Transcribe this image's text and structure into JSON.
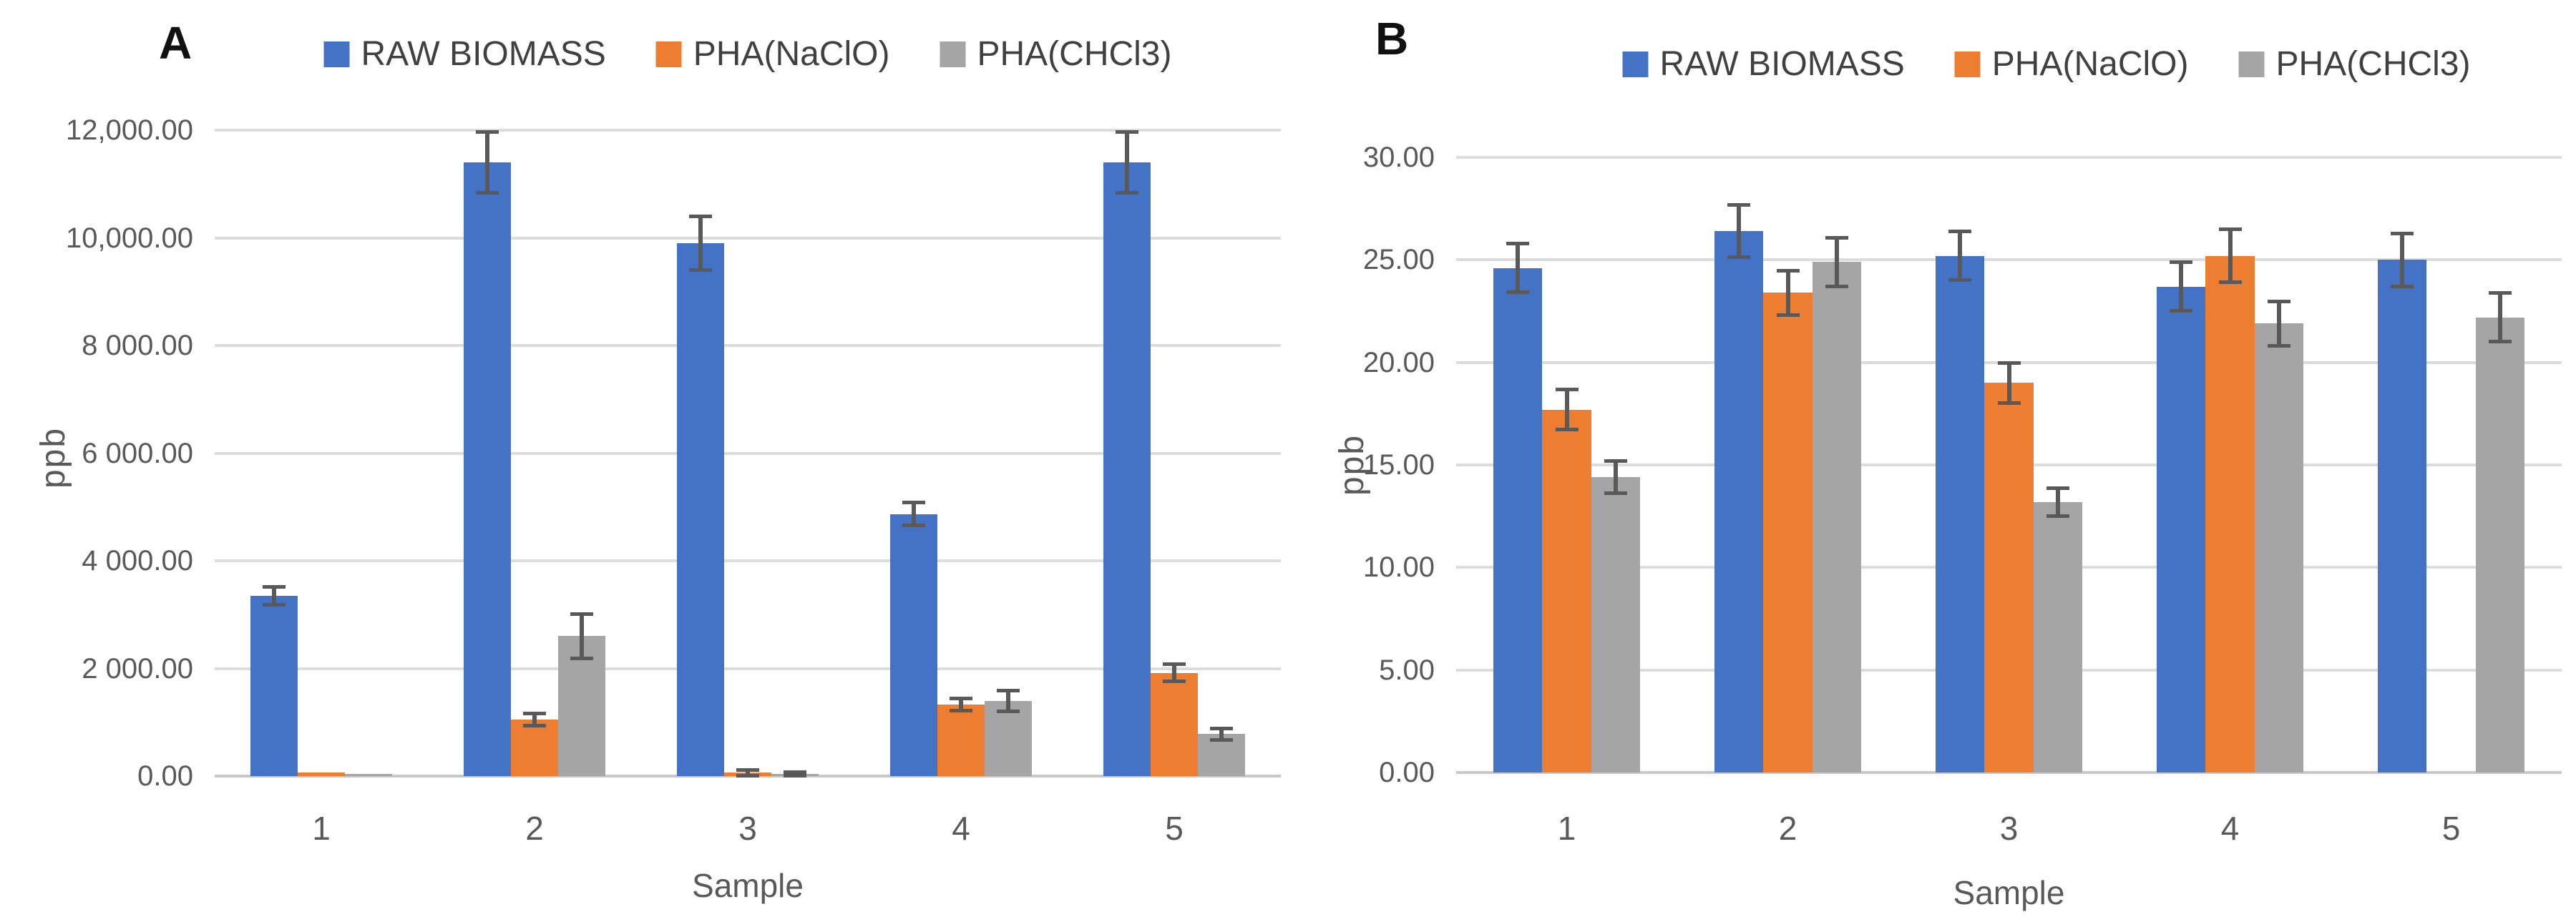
{
  "figure": {
    "background": "#ffffff",
    "colors": {
      "grid": "#dcdcdc",
      "baseline": "#c8c8c8",
      "axis_text": "#595959",
      "error_bar": "#595959",
      "legend_text": "#404040",
      "panel_label": "#111111"
    }
  },
  "chart_data": [
    {
      "type": "bar",
      "panel_label": "A",
      "title": "",
      "xlabel": "Sample",
      "ylabel": "ppb",
      "categories": [
        "1",
        "2",
        "3",
        "4",
        "5"
      ],
      "series": [
        {
          "name": "RAW BIOMASS",
          "color": "#4472C4",
          "values": [
            3350,
            11400,
            9900,
            4870,
            11400
          ],
          "errors": [
            170,
            570,
            500,
            220,
            570
          ]
        },
        {
          "name": "PHA(NaClO)",
          "color": "#ED7D31",
          "values": [
            60,
            1050,
            60,
            1330,
            1920
          ],
          "errors": [
            0,
            120,
            60,
            120,
            160
          ]
        },
        {
          "name": "PHA(CHCl3)",
          "color": "#A5A5A5",
          "values": [
            40,
            2600,
            40,
            1390,
            780
          ],
          "errors": [
            0,
            420,
            40,
            200,
            110
          ]
        }
      ],
      "ylim": [
        0,
        12000
      ],
      "ytick_step": 2000,
      "ytick_labels": [
        "0.00",
        "2 000.00",
        "4 000.00",
        "6 000.00",
        "8 000.00",
        "10,000.00",
        "12,000.00"
      ],
      "grid": true,
      "legend_position": "top"
    },
    {
      "type": "bar",
      "panel_label": "B",
      "title": "",
      "xlabel": "Sample",
      "ylabel": "ppb",
      "categories": [
        "1",
        "2",
        "3",
        "4",
        "5"
      ],
      "series": [
        {
          "name": "RAW BIOMASS",
          "color": "#4472C4",
          "values": [
            24.6,
            26.4,
            25.2,
            23.7,
            25.0
          ],
          "errors": [
            1.2,
            1.3,
            1.2,
            1.2,
            1.3
          ]
        },
        {
          "name": "PHA(NaClO)",
          "color": "#ED7D31",
          "values": [
            17.7,
            23.4,
            19.0,
            25.2,
            null
          ],
          "errors": [
            1.0,
            1.1,
            1.0,
            1.3,
            null
          ]
        },
        {
          "name": "PHA(CHCl3)",
          "color": "#A5A5A5",
          "values": [
            14.4,
            24.9,
            13.2,
            21.9,
            22.2
          ],
          "errors": [
            0.8,
            1.2,
            0.7,
            1.1,
            1.2
          ]
        }
      ],
      "ylim": [
        0,
        30
      ],
      "ytick_step": 5,
      "ytick_labels": [
        "0.00",
        "5.00",
        "10.00",
        "15.00",
        "20.00",
        "25.00",
        "30.00"
      ],
      "grid": true,
      "legend_position": "top"
    }
  ]
}
